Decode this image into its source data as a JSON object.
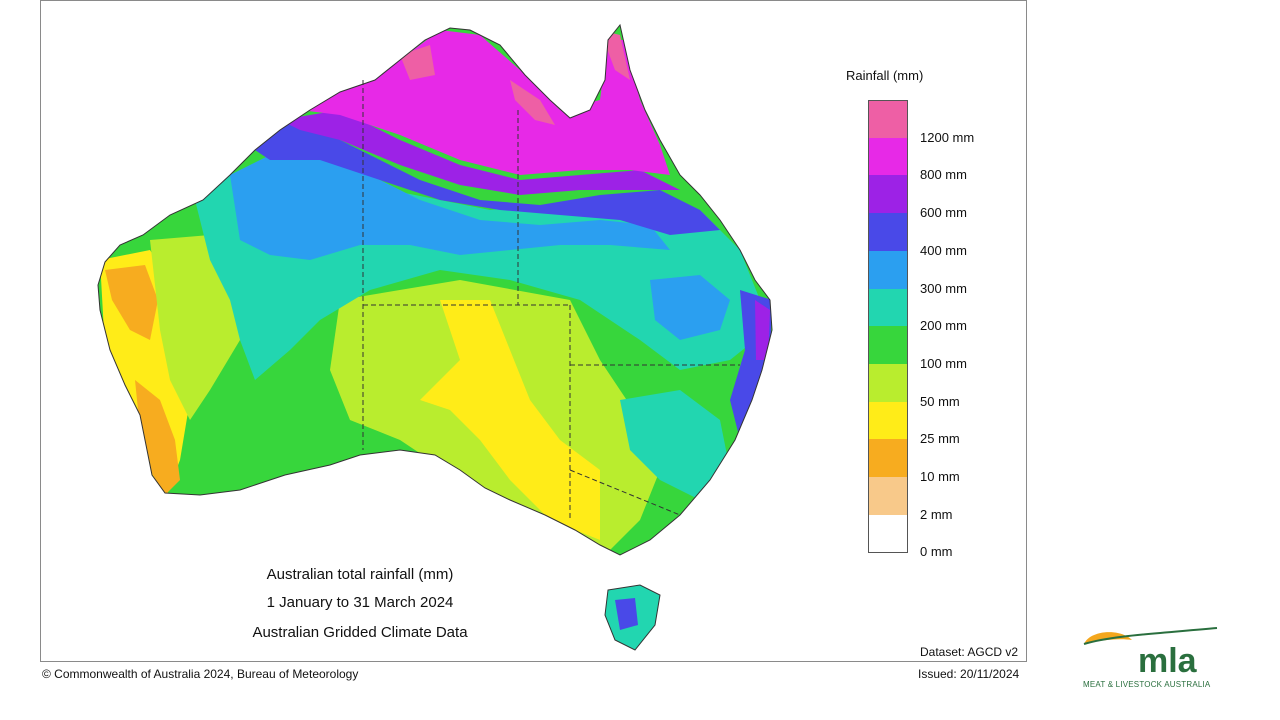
{
  "map": {
    "title_line1": "Australian total rainfall (mm)",
    "title_line2": "1 January to 31 March 2024",
    "title_line3": "Australian Gridded Climate Data",
    "dataset": "Dataset: AGCD v2",
    "issued": "Issued: 20/11/2024",
    "copyright": "© Commonwealth of Australia 2024, Bureau of Meteorology"
  },
  "legend": {
    "title": "Rainfall (mm)",
    "bins": [
      {
        "color": "#ee5fa5",
        "label": "1200 mm"
      },
      {
        "color": "#e729e7",
        "label": "800 mm"
      },
      {
        "color": "#9d22e6",
        "label": "600 mm"
      },
      {
        "color": "#4949e8",
        "label": "400 mm"
      },
      {
        "color": "#2b9ff0",
        "label": "300 mm"
      },
      {
        "color": "#22d6b0",
        "label": "200 mm"
      },
      {
        "color": "#37d63c",
        "label": "100 mm"
      },
      {
        "color": "#b9ed2e",
        "label": "50 mm"
      },
      {
        "color": "#ffec18",
        "label": "25 mm"
      },
      {
        "color": "#f7ac1f",
        "label": "10 mm"
      },
      {
        "color": "#f8c98a",
        "label": "2 mm"
      },
      {
        "color": "#ffffff",
        "label": "0 mm"
      }
    ]
  },
  "logo": {
    "name": "mla",
    "subtitle": "MEAT & LIVESTOCK AUSTRALIA",
    "green": "#2a6f3e",
    "orange": "#f4a71d"
  }
}
